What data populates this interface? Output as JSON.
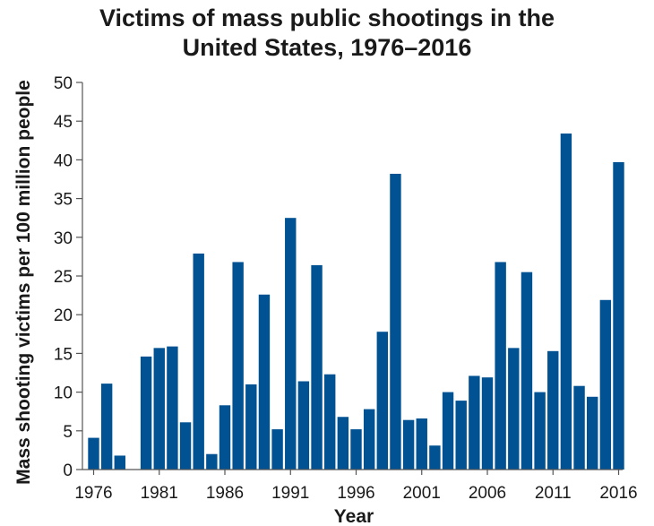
{
  "chart_data": {
    "type": "bar",
    "title_lines": [
      "Victims of mass public shootings in the",
      "United States, 1976–2016"
    ],
    "xlabel": "Year",
    "ylabel": "Mass shooting victims per 100 million people",
    "ylim": [
      0,
      50
    ],
    "yticks": [
      0,
      5,
      10,
      15,
      20,
      25,
      30,
      35,
      40,
      45,
      50
    ],
    "xticks": [
      1976,
      1981,
      1986,
      1991,
      1996,
      2001,
      2006,
      2011,
      2016
    ],
    "bar_color": "#005293",
    "categories": [
      1976,
      1977,
      1978,
      1979,
      1980,
      1981,
      1982,
      1983,
      1984,
      1985,
      1986,
      1987,
      1988,
      1989,
      1990,
      1991,
      1992,
      1993,
      1994,
      1995,
      1996,
      1997,
      1998,
      1999,
      2000,
      2001,
      2002,
      2003,
      2004,
      2005,
      2006,
      2007,
      2008,
      2009,
      2010,
      2011,
      2012,
      2013,
      2014,
      2015,
      2016
    ],
    "values": [
      4.1,
      11.1,
      1.8,
      0,
      14.6,
      15.7,
      15.9,
      6.1,
      27.9,
      2.0,
      8.3,
      26.8,
      11.0,
      22.6,
      5.2,
      32.5,
      11.4,
      26.4,
      12.3,
      6.8,
      5.2,
      7.8,
      17.8,
      38.2,
      6.4,
      6.6,
      3.1,
      10.0,
      8.9,
      12.1,
      11.9,
      26.8,
      15.7,
      25.5,
      10.0,
      15.3,
      43.4,
      10.8,
      9.4,
      21.9,
      39.7
    ]
  }
}
